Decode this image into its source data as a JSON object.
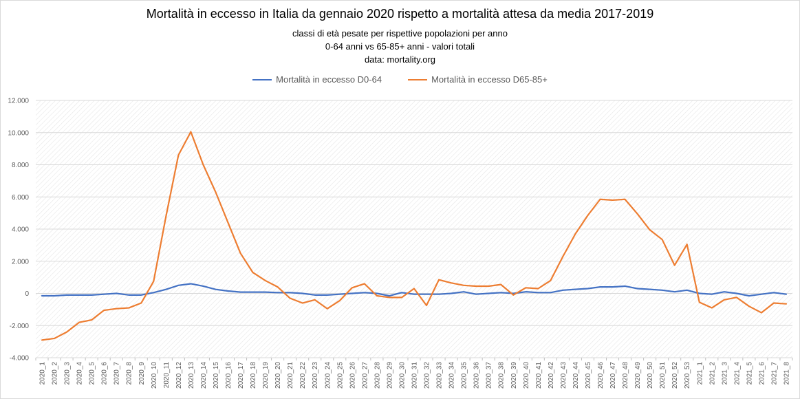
{
  "title": "Mortalità in eccesso in Italia da gennaio 2020 rispetto a mortalità attesa da media 2017-2019",
  "subtitle_lines": [
    "classi di età pesate per rispettive popolazioni per anno",
    "0-64 anni vs 65-85+ anni - valori totali",
    "data: mortality.org"
  ],
  "chart_data": {
    "type": "line",
    "title": "Mortalità in eccesso in Italia da gennaio 2020 rispetto a mortalità attesa da media 2017-2019",
    "xlabel": "",
    "ylabel": "",
    "ylim": [
      -4000,
      12000
    ],
    "yticks": [
      -4000,
      -2000,
      0,
      2000,
      4000,
      6000,
      8000,
      10000,
      12000
    ],
    "ytick_labels": [
      "-4.000",
      "-2.000",
      "0",
      "2.000",
      "4.000",
      "6.000",
      "8.000",
      "10.000",
      "12.000"
    ],
    "legend_position": "top-center",
    "categories": [
      "2020_1",
      "2020_2",
      "2020_3",
      "2020_4",
      "2020_5",
      "2020_6",
      "2020_7",
      "2020_8",
      "2020_9",
      "2020_10",
      "2020_11",
      "2020_12",
      "2020_13",
      "2020_14",
      "2020_15",
      "2020_16",
      "2020_17",
      "2020_18",
      "2020_19",
      "2020_20",
      "2020_21",
      "2020_22",
      "2020_23",
      "2020_24",
      "2020_25",
      "2020_26",
      "2020_27",
      "2020_28",
      "2020_29",
      "2020_30",
      "2020_31",
      "2020_32",
      "2020_33",
      "2020_34",
      "2020_35",
      "2020_36",
      "2020_37",
      "2020_38",
      "2020_39",
      "2020_40",
      "2020_41",
      "2020_42",
      "2020_43",
      "2020_44",
      "2020_45",
      "2020_46",
      "2020_47",
      "2020_48",
      "2020_49",
      "2020_50",
      "2020_51",
      "2020_52",
      "2020_53",
      "2021_1",
      "2021_2",
      "2021_3",
      "2021_4",
      "2021_5",
      "2021_6",
      "2021_7",
      "2021_8"
    ],
    "series": [
      {
        "name": "Mortalità in eccesso D0-64",
        "color": "#4472c4",
        "values": [
          -150,
          -150,
          -100,
          -100,
          -100,
          -50,
          0,
          -100,
          -100,
          50,
          250,
          500,
          600,
          450,
          250,
          150,
          80,
          80,
          80,
          50,
          50,
          0,
          -100,
          -100,
          -50,
          0,
          50,
          0,
          -150,
          50,
          -50,
          -50,
          -50,
          0,
          100,
          -50,
          0,
          50,
          0,
          100,
          50,
          50,
          200,
          250,
          300,
          400,
          400,
          450,
          300,
          250,
          200,
          100,
          200,
          0,
          -50,
          100,
          0,
          -150,
          -50,
          50,
          -50
        ]
      },
      {
        "name": "Mortalità in eccesso D65-85+",
        "color": "#ed7d31",
        "values": [
          -2900,
          -2800,
          -2400,
          -1800,
          -1650,
          -1050,
          -950,
          -900,
          -600,
          750,
          4800,
          8600,
          10050,
          8000,
          6300,
          4400,
          2500,
          1300,
          800,
          400,
          -300,
          -600,
          -400,
          -950,
          -450,
          350,
          600,
          -150,
          -250,
          -250,
          300,
          -750,
          850,
          650,
          500,
          450,
          450,
          550,
          -100,
          350,
          300,
          800,
          2300,
          3700,
          4850,
          5850,
          5800,
          5850,
          4950,
          3950,
          3350,
          1750,
          3050,
          -550,
          -900,
          -400,
          -250,
          -800,
          -1200,
          -600,
          -650
        ]
      }
    ]
  }
}
